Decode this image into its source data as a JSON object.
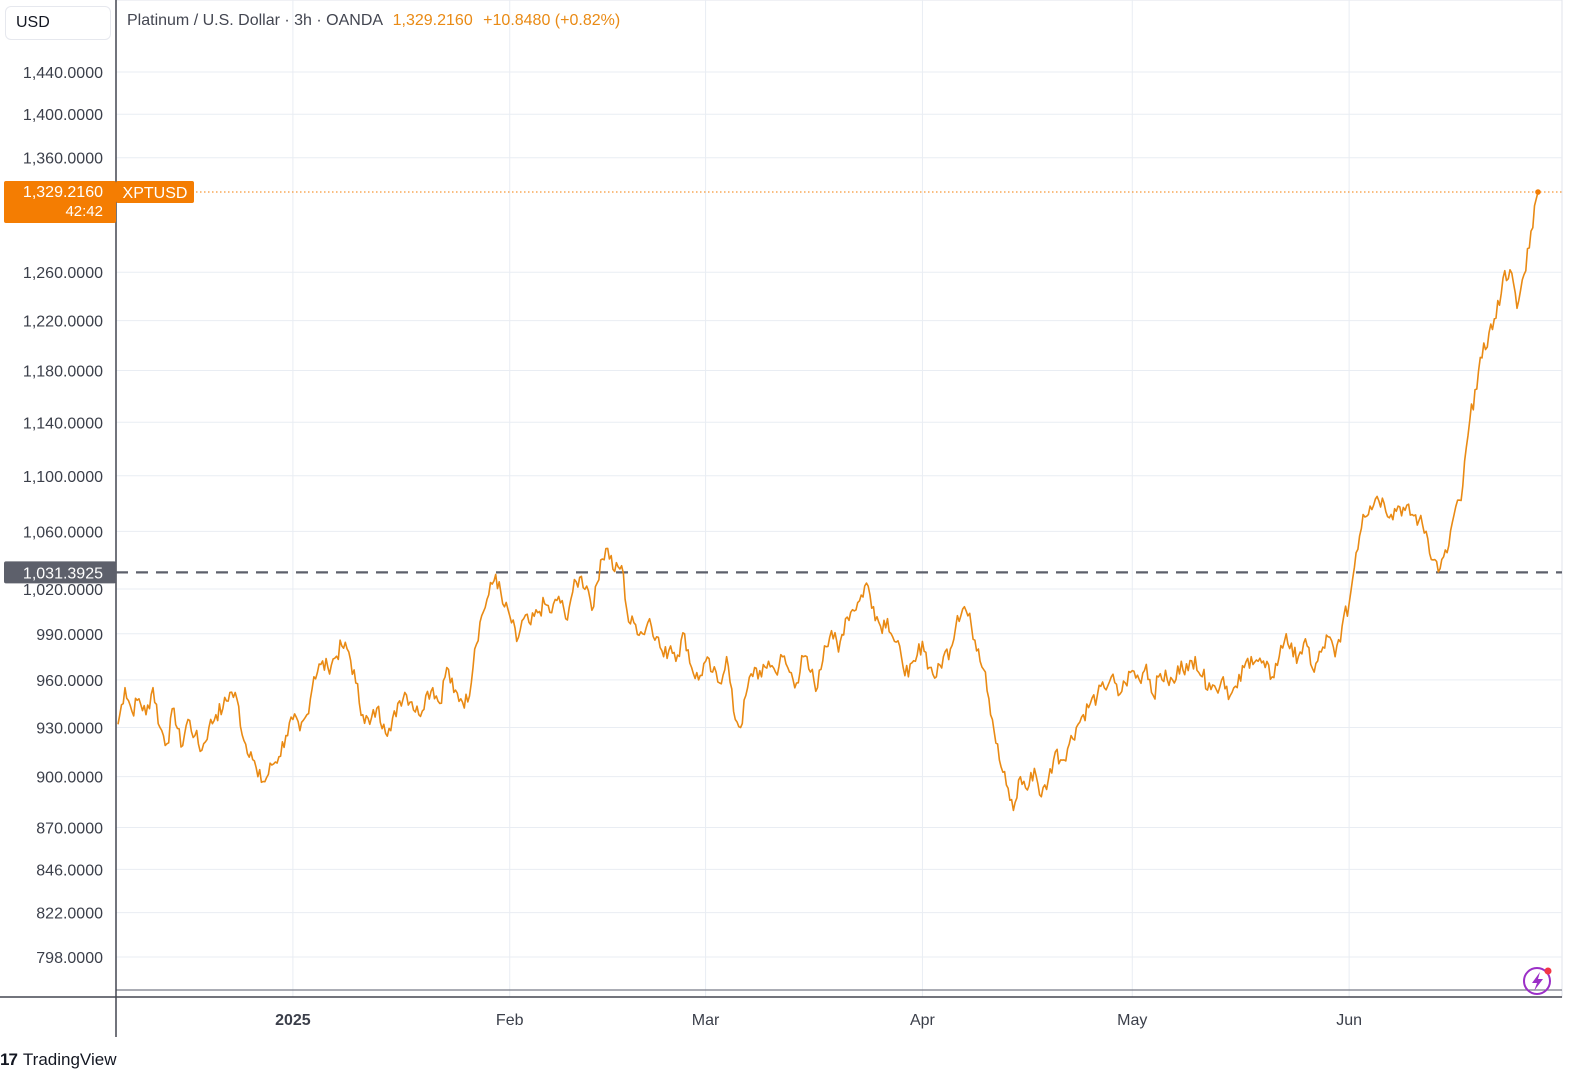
{
  "header": {
    "currency": "USD",
    "symbol_title": "Platinum / U.S. Dollar · 3h · OANDA",
    "last_value": "1,329.2160",
    "change": "+10.8480 (+0.82%)"
  },
  "price_label": {
    "value": "1,329.2160",
    "countdown": "42:42",
    "ticker": "XPTUSD"
  },
  "reference_label": {
    "value": "1,031.3925"
  },
  "brand": {
    "logo": "17",
    "name": "TradingView"
  },
  "colors": {
    "line": "#e98a14",
    "price_bg": "#f47d02",
    "ref_bg": "#5d606b",
    "grid": "#e9edf3"
  },
  "icons": [
    "tradingview-logo-icon",
    "lightning-icon"
  ],
  "chart_data": {
    "type": "line",
    "scale": "log",
    "y_ticks": [
      {
        "value": 1440,
        "label": "1,440.0000"
      },
      {
        "value": 1400,
        "label": "1,400.0000"
      },
      {
        "value": 1360,
        "label": "1,360.0000"
      },
      {
        "value": 1260,
        "label": "1,260.0000"
      },
      {
        "value": 1220,
        "label": "1,220.0000"
      },
      {
        "value": 1180,
        "label": "1,180.0000"
      },
      {
        "value": 1140,
        "label": "1,140.0000"
      },
      {
        "value": 1100,
        "label": "1,100.0000"
      },
      {
        "value": 1060,
        "label": "1,060.0000"
      },
      {
        "value": 1020,
        "label": "1,020.0000"
      },
      {
        "value": 990,
        "label": "990.0000"
      },
      {
        "value": 960,
        "label": "960.0000"
      },
      {
        "value": 930,
        "label": "930.0000"
      },
      {
        "value": 900,
        "label": "900.0000"
      },
      {
        "value": 870,
        "label": "870.0000"
      },
      {
        "value": 846,
        "label": "846.0000"
      },
      {
        "value": 822,
        "label": "822.0000"
      },
      {
        "value": 798,
        "label": "798.0000"
      }
    ],
    "x_ticks": [
      {
        "date": "2025-01-01",
        "label": "2025",
        "bold": true
      },
      {
        "date": "2025-02-01",
        "label": "Feb",
        "bold": false
      },
      {
        "date": "2025-03-01",
        "label": "Mar",
        "bold": false
      },
      {
        "date": "2025-04-01",
        "label": "Apr",
        "bold": false
      },
      {
        "date": "2025-05-01",
        "label": "May",
        "bold": false
      },
      {
        "date": "2025-06-01",
        "label": "Jun",
        "bold": false
      }
    ],
    "x_range": [
      "2024-12-07",
      "2025-06-28"
    ],
    "reference_line": 1031.3925,
    "last_value": 1329.216,
    "series": [
      {
        "values": [
          [
            "2024-12-07",
            932
          ],
          [
            "2024-12-08",
            955
          ],
          [
            "2024-12-09",
            940
          ],
          [
            "2024-12-10",
            948
          ],
          [
            "2024-12-11",
            938
          ],
          [
            "2024-12-12",
            955
          ],
          [
            "2024-12-13",
            930
          ],
          [
            "2024-12-14",
            920
          ],
          [
            "2024-12-15",
            942
          ],
          [
            "2024-12-16",
            918
          ],
          [
            "2024-12-17",
            935
          ],
          [
            "2024-12-18",
            925
          ],
          [
            "2024-12-19",
            916
          ],
          [
            "2024-12-20",
            930
          ],
          [
            "2024-12-21",
            938
          ],
          [
            "2024-12-22",
            942
          ],
          [
            "2024-12-23",
            952
          ],
          [
            "2024-12-24",
            948
          ],
          [
            "2024-12-25",
            922
          ],
          [
            "2024-12-26",
            915
          ],
          [
            "2024-12-27",
            900
          ],
          [
            "2024-12-28",
            897
          ],
          [
            "2024-12-29",
            907
          ],
          [
            "2024-12-30",
            912
          ],
          [
            "2024-12-31",
            925
          ],
          [
            "2025-01-01",
            935
          ],
          [
            "2025-01-02",
            928
          ],
          [
            "2025-01-03",
            938
          ],
          [
            "2025-01-04",
            962
          ],
          [
            "2025-01-05",
            970
          ],
          [
            "2025-01-06",
            968
          ],
          [
            "2025-01-07",
            974
          ],
          [
            "2025-01-08",
            982
          ],
          [
            "2025-01-09",
            978
          ],
          [
            "2025-01-10",
            958
          ],
          [
            "2025-01-11",
            938
          ],
          [
            "2025-01-12",
            932
          ],
          [
            "2025-01-13",
            942
          ],
          [
            "2025-01-14",
            932
          ],
          [
            "2025-01-15",
            928
          ],
          [
            "2025-01-16",
            945
          ],
          [
            "2025-01-17",
            952
          ],
          [
            "2025-01-18",
            946
          ],
          [
            "2025-01-19",
            938
          ],
          [
            "2025-01-20",
            950
          ],
          [
            "2025-01-21",
            955
          ],
          [
            "2025-01-22",
            945
          ],
          [
            "2025-01-23",
            968
          ],
          [
            "2025-01-24",
            952
          ],
          [
            "2025-01-25",
            948
          ],
          [
            "2025-01-26",
            946
          ],
          [
            "2025-01-27",
            980
          ],
          [
            "2025-01-28",
            1002
          ],
          [
            "2025-01-29",
            1016
          ],
          [
            "2025-01-30",
            1030
          ],
          [
            "2025-01-31",
            1010
          ],
          [
            "2025-02-01",
            1002
          ],
          [
            "2025-02-02",
            985
          ],
          [
            "2025-02-03",
            1000
          ],
          [
            "2025-02-04",
            996
          ],
          [
            "2025-02-05",
            1004
          ],
          [
            "2025-02-06",
            1010
          ],
          [
            "2025-02-07",
            1004
          ],
          [
            "2025-02-08",
            1015
          ],
          [
            "2025-02-09",
            1000
          ],
          [
            "2025-02-10",
            1018
          ],
          [
            "2025-02-11",
            1028
          ],
          [
            "2025-02-12",
            1022
          ],
          [
            "2025-02-13",
            1008
          ],
          [
            "2025-02-14",
            1040
          ],
          [
            "2025-02-15",
            1048
          ],
          [
            "2025-02-16",
            1032
          ],
          [
            "2025-02-17",
            1036
          ],
          [
            "2025-02-18",
            998
          ],
          [
            "2025-02-19",
            996
          ],
          [
            "2025-02-20",
            990
          ],
          [
            "2025-02-21",
            1000
          ],
          [
            "2025-02-22",
            988
          ],
          [
            "2025-02-23",
            975
          ],
          [
            "2025-02-24",
            982
          ],
          [
            "2025-02-25",
            976
          ],
          [
            "2025-02-26",
            990
          ],
          [
            "2025-02-27",
            968
          ],
          [
            "2025-02-28",
            960
          ],
          [
            "2025-03-01",
            972
          ],
          [
            "2025-03-02",
            965
          ],
          [
            "2025-03-03",
            958
          ],
          [
            "2025-03-04",
            975
          ],
          [
            "2025-03-05",
            940
          ],
          [
            "2025-03-06",
            930
          ],
          [
            "2025-03-07",
            955
          ],
          [
            "2025-03-08",
            968
          ],
          [
            "2025-03-09",
            962
          ],
          [
            "2025-03-10",
            972
          ],
          [
            "2025-03-11",
            965
          ],
          [
            "2025-03-12",
            975
          ],
          [
            "2025-03-13",
            965
          ],
          [
            "2025-03-14",
            958
          ],
          [
            "2025-03-15",
            975
          ],
          [
            "2025-03-16",
            965
          ],
          [
            "2025-03-17",
            955
          ],
          [
            "2025-03-18",
            982
          ],
          [
            "2025-03-19",
            992
          ],
          [
            "2025-03-20",
            978
          ],
          [
            "2025-03-21",
            1000
          ],
          [
            "2025-03-22",
            1006
          ],
          [
            "2025-03-23",
            1012
          ],
          [
            "2025-03-24",
            1024
          ],
          [
            "2025-03-25",
            1008
          ],
          [
            "2025-03-26",
            995
          ],
          [
            "2025-03-27",
            1000
          ],
          [
            "2025-03-28",
            985
          ],
          [
            "2025-03-29",
            975
          ],
          [
            "2025-03-30",
            962
          ],
          [
            "2025-03-31",
            972
          ],
          [
            "2025-04-01",
            985
          ],
          [
            "2025-04-02",
            968
          ],
          [
            "2025-04-03",
            962
          ],
          [
            "2025-04-04",
            975
          ],
          [
            "2025-04-05",
            980
          ],
          [
            "2025-04-06",
            1002
          ],
          [
            "2025-04-07",
            1008
          ],
          [
            "2025-04-08",
            995
          ],
          [
            "2025-04-09",
            980
          ],
          [
            "2025-04-10",
            965
          ],
          [
            "2025-04-11",
            935
          ],
          [
            "2025-04-12",
            910
          ],
          [
            "2025-04-13",
            895
          ],
          [
            "2025-04-14",
            880
          ],
          [
            "2025-04-15",
            900
          ],
          [
            "2025-04-16",
            892
          ],
          [
            "2025-04-17",
            905
          ],
          [
            "2025-04-18",
            888
          ],
          [
            "2025-04-19",
            898
          ],
          [
            "2025-04-20",
            915
          ],
          [
            "2025-04-21",
            910
          ],
          [
            "2025-04-22",
            920
          ],
          [
            "2025-04-23",
            930
          ],
          [
            "2025-04-24",
            938
          ],
          [
            "2025-04-25",
            945
          ],
          [
            "2025-04-26",
            950
          ],
          [
            "2025-04-27",
            955
          ],
          [
            "2025-04-28",
            962
          ],
          [
            "2025-04-29",
            950
          ],
          [
            "2025-04-30",
            958
          ],
          [
            "2025-05-01",
            966
          ],
          [
            "2025-05-02",
            960
          ],
          [
            "2025-05-03",
            970
          ],
          [
            "2025-05-04",
            950
          ],
          [
            "2025-05-05",
            964
          ],
          [
            "2025-05-06",
            960
          ],
          [
            "2025-05-07",
            958
          ],
          [
            "2025-05-08",
            972
          ],
          [
            "2025-05-09",
            966
          ],
          [
            "2025-05-10",
            975
          ],
          [
            "2025-05-11",
            962
          ],
          [
            "2025-05-12",
            958
          ],
          [
            "2025-05-13",
            954
          ],
          [
            "2025-05-14",
            962
          ],
          [
            "2025-05-15",
            950
          ],
          [
            "2025-05-16",
            955
          ],
          [
            "2025-05-17",
            968
          ],
          [
            "2025-05-18",
            975
          ],
          [
            "2025-05-19",
            972
          ],
          [
            "2025-05-20",
            968
          ],
          [
            "2025-05-21",
            962
          ],
          [
            "2025-05-22",
            975
          ],
          [
            "2025-05-23",
            990
          ],
          [
            "2025-05-24",
            975
          ],
          [
            "2025-05-25",
            978
          ],
          [
            "2025-05-26",
            982
          ],
          [
            "2025-05-27",
            965
          ],
          [
            "2025-05-28",
            978
          ],
          [
            "2025-05-29",
            988
          ],
          [
            "2025-05-30",
            975
          ],
          [
            "2025-05-31",
            995
          ],
          [
            "2025-06-01",
            1010
          ],
          [
            "2025-06-02",
            1045
          ],
          [
            "2025-06-03",
            1072
          ],
          [
            "2025-06-04",
            1078
          ],
          [
            "2025-06-05",
            1085
          ],
          [
            "2025-06-06",
            1080
          ],
          [
            "2025-06-07",
            1072
          ],
          [
            "2025-06-08",
            1078
          ],
          [
            "2025-06-09",
            1075
          ],
          [
            "2025-06-10",
            1072
          ],
          [
            "2025-06-11",
            1068
          ],
          [
            "2025-06-12",
            1060
          ],
          [
            "2025-06-13",
            1040
          ],
          [
            "2025-06-14",
            1034
          ],
          [
            "2025-06-15",
            1045
          ],
          [
            "2025-06-16",
            1072
          ],
          [
            "2025-06-17",
            1082
          ],
          [
            "2025-06-18",
            1130
          ],
          [
            "2025-06-19",
            1165
          ],
          [
            "2025-06-20",
            1190
          ],
          [
            "2025-06-21",
            1210
          ],
          [
            "2025-06-22",
            1222
          ],
          [
            "2025-06-23",
            1255
          ],
          [
            "2025-06-24",
            1262
          ],
          [
            "2025-06-25",
            1230
          ],
          [
            "2025-06-26",
            1258
          ],
          [
            "2025-06-27",
            1295
          ],
          [
            "2025-06-28",
            1329.216
          ]
        ]
      }
    ]
  }
}
